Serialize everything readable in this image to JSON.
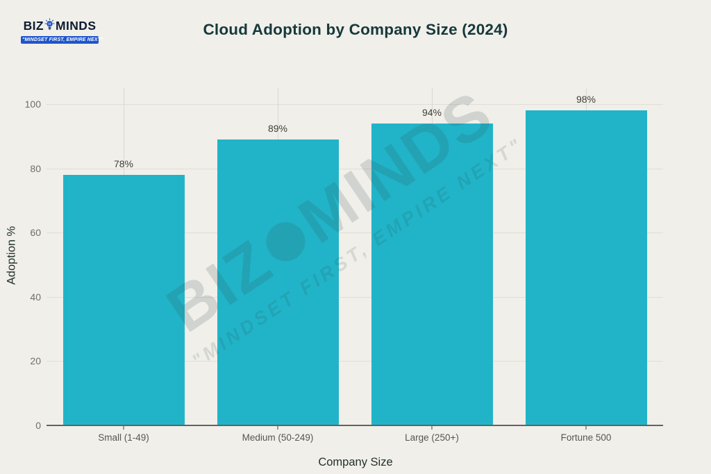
{
  "logo": {
    "text_primary": "BIZ",
    "text_secondary": "MINDS",
    "tagline": "\"MINDSET FIRST, EMPIRE NEXT\""
  },
  "watermark": {
    "text_primary": "BIZ",
    "text_secondary": "MINDS",
    "tagline": "\"MINDSET FIRST, EMPIRE NEXT\""
  },
  "colors": {
    "background": "#f0efe9",
    "bar": "#21b4c8",
    "logo_blue": "#2356cb",
    "title_text": "#17383c",
    "grid": "#e0ded5",
    "axis": "#63635d"
  },
  "chart_data": {
    "type": "bar",
    "title": "Cloud Adoption by Company Size (2024)",
    "categories": [
      "Small (1-49)",
      "Medium (50-249)",
      "Large (250+)",
      "Fortune 500"
    ],
    "values": [
      78,
      89,
      94,
      98
    ],
    "value_labels": [
      "78%",
      "89%",
      "94%",
      "98%"
    ],
    "xlabel": "Company Size",
    "ylabel": "Adoption %",
    "ylim": [
      0,
      100
    ],
    "yticks": [
      0,
      20,
      40,
      60,
      80,
      100
    ],
    "grid": true,
    "legend": false
  }
}
